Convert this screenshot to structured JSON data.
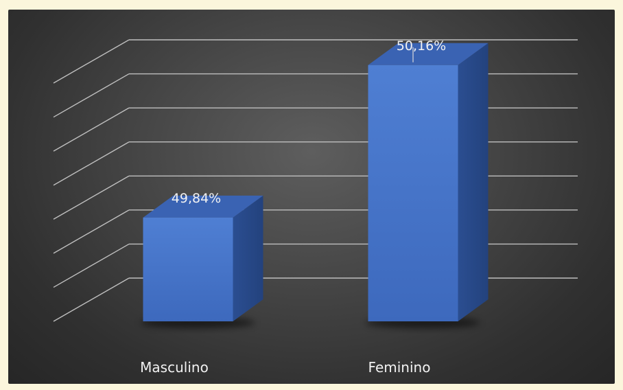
{
  "chart_data": {
    "type": "bar",
    "style": "3d-column",
    "title": "",
    "xlabel": "",
    "ylabel": "",
    "categories": [
      "Masculino",
      "Feminino"
    ],
    "series": [
      {
        "values": [
          49.84,
          50.16
        ],
        "labels": [
          "49,84%",
          "50,16%"
        ]
      }
    ],
    "ylim": [
      49.7,
      50.2
    ],
    "grid": true,
    "legend": "none",
    "colors": {
      "bar_front": "#4472c4",
      "background": "#3a3a3a",
      "gridline": "#bfbfbf",
      "text": "#f2f2f2"
    }
  }
}
